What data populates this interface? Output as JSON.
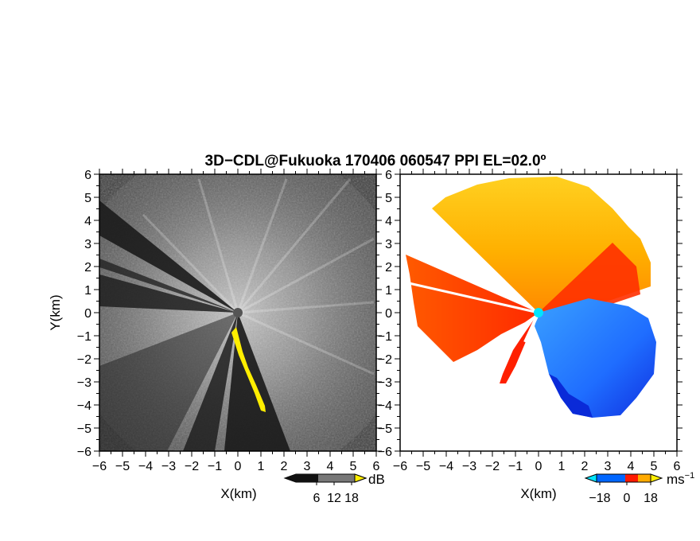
{
  "figure": {
    "title": "3D−CDL@Fukuoka 170406 060547 PPI EL=02.0º"
  },
  "chart_data": [
    {
      "type": "heatmap",
      "variable": "backscatter intensity",
      "xlabel": "X(km)",
      "ylabel": "Y(km)",
      "xlim": [
        -6,
        6
      ],
      "ylim": [
        -6,
        6
      ],
      "xticks": [
        "−6",
        "−5",
        "−4",
        "−3",
        "−2",
        "−1",
        "0",
        "1",
        "2",
        "3",
        "4",
        "5",
        "6"
      ],
      "yticks": [
        "6",
        "5",
        "4",
        "3",
        "2",
        "1",
        "0",
        "−1",
        "−2",
        "−3",
        "−4",
        "−5",
        "−6"
      ],
      "colorbar": {
        "unit": "dB",
        "ticks": [
          "6",
          "12",
          "18"
        ],
        "colors": [
          "#000000",
          "#ffffff"
        ]
      },
      "highlight_color": "#ffee00"
    },
    {
      "type": "heatmap",
      "variable": "radial velocity",
      "xlabel": "X(km)",
      "ylabel": "",
      "xlim": [
        -6,
        6
      ],
      "ylim": [
        -6,
        6
      ],
      "xticks": [
        "−6",
        "−5",
        "−4",
        "−3",
        "−2",
        "−1",
        "0",
        "1",
        "2",
        "3",
        "4",
        "5",
        "6"
      ],
      "yticks": [
        "6",
        "5",
        "4",
        "3",
        "2",
        "1",
        "0",
        "−1",
        "−2",
        "−3",
        "−4",
        "−5",
        "−6"
      ],
      "colorbar": {
        "unit": "ms",
        "unit_exponent": "−1",
        "ticks": [
          "−18",
          "0",
          "18"
        ],
        "colors": [
          "#00e5ff",
          "#0066ff",
          "#0000aa",
          "#ff0000",
          "#ff8800",
          "#ffee00"
        ]
      }
    }
  ]
}
